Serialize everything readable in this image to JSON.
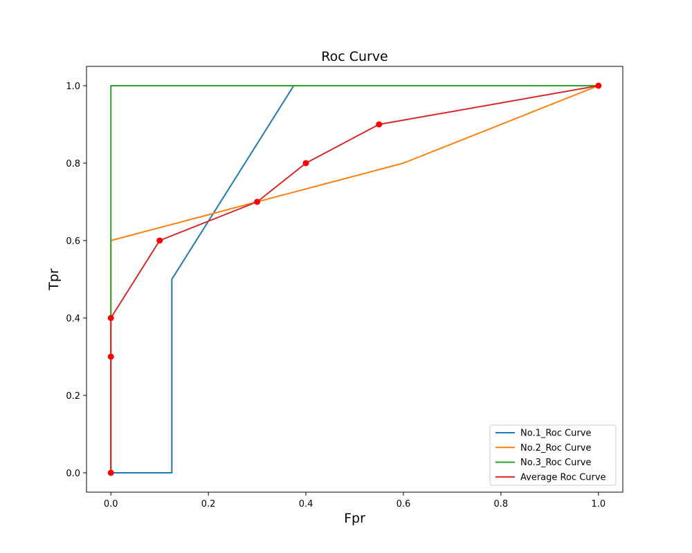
{
  "chart_data": {
    "type": "line",
    "title": "Roc Curve",
    "xlabel": "Fpr",
    "ylabel": "Tpr",
    "xlim": [
      -0.05,
      1.05
    ],
    "ylim": [
      -0.05,
      1.05
    ],
    "xticks": [
      0.0,
      0.2,
      0.4,
      0.6,
      0.8,
      1.0
    ],
    "yticks": [
      0.0,
      0.2,
      0.4,
      0.6,
      0.8,
      1.0
    ],
    "tick_labels_x": [
      "0.0",
      "0.2",
      "0.4",
      "0.6",
      "0.8",
      "1.0"
    ],
    "tick_labels_y": [
      "0.0",
      "0.2",
      "0.4",
      "0.6",
      "0.8",
      "1.0"
    ],
    "grid": false,
    "legend_position": "lower-right",
    "series": [
      {
        "name": "No.1_Roc Curve",
        "color": "#1f77b4",
        "x": [
          0.0,
          0.125,
          0.125,
          0.375,
          1.0
        ],
        "y": [
          0.0,
          0.0,
          0.5,
          1.0,
          1.0
        ],
        "markers": false
      },
      {
        "name": "No.2_Roc Curve",
        "color": "#ff7f0e",
        "x": [
          0.0,
          0.0,
          0.3,
          0.6,
          1.0
        ],
        "y": [
          0.0,
          0.6,
          0.7,
          0.8,
          1.0
        ],
        "markers": false
      },
      {
        "name": "No.3_Roc Curve",
        "color": "#2ca02c",
        "x": [
          0.0,
          0.0,
          0.0,
          1.0
        ],
        "y": [
          0.0,
          0.4,
          1.0,
          1.0
        ],
        "markers": false
      },
      {
        "name": "Average Roc Curve",
        "color": "#d62728",
        "marker_color": "#ff0000",
        "x": [
          0.0,
          0.0,
          0.0,
          0.1,
          0.3,
          0.4,
          0.55,
          1.0
        ],
        "y": [
          0.0,
          0.3,
          0.4,
          0.6,
          0.7,
          0.8,
          0.9,
          1.0
        ],
        "markers": true
      }
    ]
  }
}
